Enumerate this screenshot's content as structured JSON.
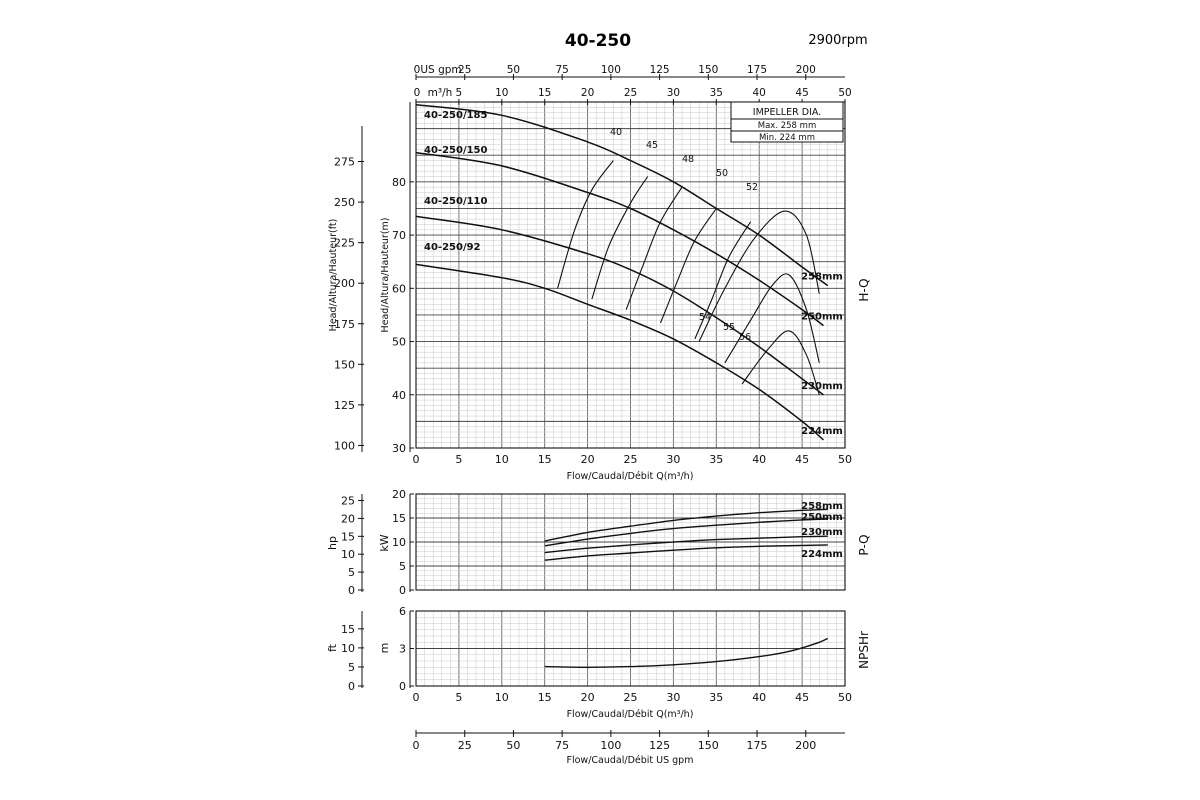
{
  "header": {
    "model": "40-250",
    "speed": "2900rpm"
  },
  "impeller_box": {
    "title": "IMPELLER DIA.",
    "max": "Max.  258 mm",
    "min": "Min.   224 mm"
  },
  "chart_data": [
    {
      "type": "line",
      "name": "H-Q",
      "side_label": "H-Q",
      "xlabel": "Flow/Caudal/Débit Q(m³/h)",
      "ylabel": "Head/Altura/Hauteur(m)",
      "ylabel_ft": "Head/Altura/Hauteur(ft)",
      "xlim": [
        0,
        50
      ],
      "ylim": [
        30,
        95
      ],
      "x_ticks": [
        0,
        5,
        10,
        15,
        20,
        25,
        30,
        35,
        40,
        45,
        50
      ],
      "y_ticks": [
        30,
        40,
        50,
        60,
        70,
        80
      ],
      "y_ticks_ft": [
        100,
        125,
        150,
        175,
        200,
        225,
        250,
        275
      ],
      "top_axis_m3h_label": "m³/h",
      "top_axis_gpm_label": "US gpm",
      "top_axis_gpm_ticks": [
        0,
        25,
        50,
        75,
        100,
        125,
        150,
        175,
        200
      ],
      "grid": true,
      "series": [
        {
          "name": "258mm",
          "x": [
            0,
            10,
            20,
            25,
            30,
            35,
            40,
            45,
            48
          ],
          "y": [
            94.5,
            92.5,
            87.5,
            84,
            80,
            75,
            70,
            64,
            60.5
          ]
        },
        {
          "name": "250mm",
          "x": [
            0,
            10,
            20,
            25,
            30,
            35,
            40,
            45,
            47.5
          ],
          "y": [
            85.5,
            83,
            78,
            75,
            71,
            66.5,
            61.5,
            56,
            53
          ]
        },
        {
          "name": "230mm",
          "x": [
            0,
            10,
            20,
            25,
            30,
            35,
            40,
            45,
            47.5
          ],
          "y": [
            73.5,
            71,
            66.5,
            63.5,
            59.5,
            54.5,
            49,
            43,
            40
          ]
        },
        {
          "name": "224mm",
          "x": [
            0,
            10,
            15,
            20,
            25,
            30,
            35,
            40,
            45,
            47.5
          ],
          "y": [
            64.5,
            62,
            60,
            57,
            54,
            50.5,
            46,
            41,
            35,
            31.5
          ]
        }
      ],
      "efficiency_labels": [
        "40",
        "45",
        "48",
        "50",
        "52",
        "54",
        "55",
        "56"
      ],
      "efficiency_curves": [
        {
          "label": "40",
          "x": [
            16.5,
            18.5,
            20.5,
            23
          ],
          "y": [
            60,
            71,
            78.5,
            84
          ]
        },
        {
          "label": "45",
          "x": [
            20.5,
            22.5,
            25,
            27
          ],
          "y": [
            58,
            68,
            76,
            81
          ]
        },
        {
          "label": "48",
          "x": [
            24.5,
            26.5,
            28.5,
            31
          ],
          "y": [
            56,
            64.5,
            72.5,
            79
          ]
        },
        {
          "label": "50",
          "x": [
            28.5,
            30.5,
            32.5,
            35
          ],
          "y": [
            53.5,
            61.5,
            69,
            75
          ]
        },
        {
          "label": "52",
          "x": [
            32.5,
            34.5,
            36.5,
            39
          ],
          "y": [
            50.5,
            58,
            66,
            72.5
          ]
        },
        {
          "label": "54",
          "x": [
            33,
            36,
            39.5,
            43,
            45.5,
            47
          ],
          "y": [
            50,
            60,
            69.5,
            74.5,
            70,
            59
          ]
        },
        {
          "label": "55",
          "x": [
            36,
            39,
            41.5,
            43.5,
            45.5,
            47
          ],
          "y": [
            46,
            54,
            60.5,
            62.5,
            56,
            46
          ]
        },
        {
          "label": "56",
          "x": [
            38,
            41,
            43.5,
            45.5,
            47
          ],
          "y": [
            42,
            48.5,
            52,
            47.5,
            40
          ]
        }
      ],
      "annotations": [
        "40-250/185",
        "40-250/150",
        "40-250/110",
        "40-250/92"
      ]
    },
    {
      "type": "line",
      "name": "P-Q",
      "side_label": "P-Q",
      "ylabel": "kW",
      "ylabel_hp": "hp",
      "xlim": [
        0,
        50
      ],
      "ylim": [
        0,
        20
      ],
      "y_ticks": [
        0,
        5,
        10,
        15,
        20
      ],
      "y_ticks_hp": [
        0,
        5,
        10,
        15,
        20,
        25
      ],
      "grid": true,
      "series": [
        {
          "name": "258mm",
          "x": [
            15,
            20,
            25,
            30,
            35,
            40,
            45,
            48
          ],
          "y": [
            10.2,
            12,
            13.3,
            14.5,
            15.4,
            16.1,
            16.6,
            16.8
          ]
        },
        {
          "name": "250mm",
          "x": [
            15,
            20,
            25,
            30,
            35,
            40,
            45,
            48
          ],
          "y": [
            9.2,
            10.6,
            11.8,
            12.8,
            13.5,
            14.1,
            14.6,
            14.8
          ]
        },
        {
          "name": "230mm",
          "x": [
            15,
            20,
            25,
            30,
            35,
            40,
            45,
            48
          ],
          "y": [
            7.8,
            8.7,
            9.4,
            10,
            10.5,
            10.8,
            11.1,
            11.2
          ]
        },
        {
          "name": "224mm",
          "x": [
            15,
            20,
            25,
            30,
            35,
            40,
            45,
            48
          ],
          "y": [
            6.2,
            7.1,
            7.7,
            8.3,
            8.8,
            9.1,
            9.3,
            9.4
          ]
        }
      ]
    },
    {
      "type": "line",
      "name": "NPSHr",
      "side_label": "NPSHr",
      "xlabel": "Flow/Caudal/Débit Q(m³/h)",
      "ylabel": "m",
      "ylabel_ft": "ft",
      "xlim": [
        0,
        50
      ],
      "ylim": [
        0,
        6
      ],
      "y_ticks": [
        0,
        3,
        6
      ],
      "y_ticks_ft": [
        0,
        5,
        10,
        15
      ],
      "x_ticks": [
        0,
        5,
        10,
        15,
        20,
        25,
        30,
        35,
        40,
        45,
        50
      ],
      "grid": true,
      "series": [
        {
          "name": "NPSHr",
          "x": [
            15,
            20,
            25,
            30,
            35,
            40,
            43,
            45,
            47,
            48
          ],
          "y": [
            1.55,
            1.5,
            1.55,
            1.7,
            1.95,
            2.35,
            2.7,
            3.05,
            3.5,
            3.8
          ]
        }
      ]
    }
  ],
  "bottom_axis": {
    "label": "Flow/Caudal/Débit  US gpm",
    "ticks": [
      0,
      25,
      50,
      75,
      100,
      125,
      150,
      175,
      200
    ]
  }
}
